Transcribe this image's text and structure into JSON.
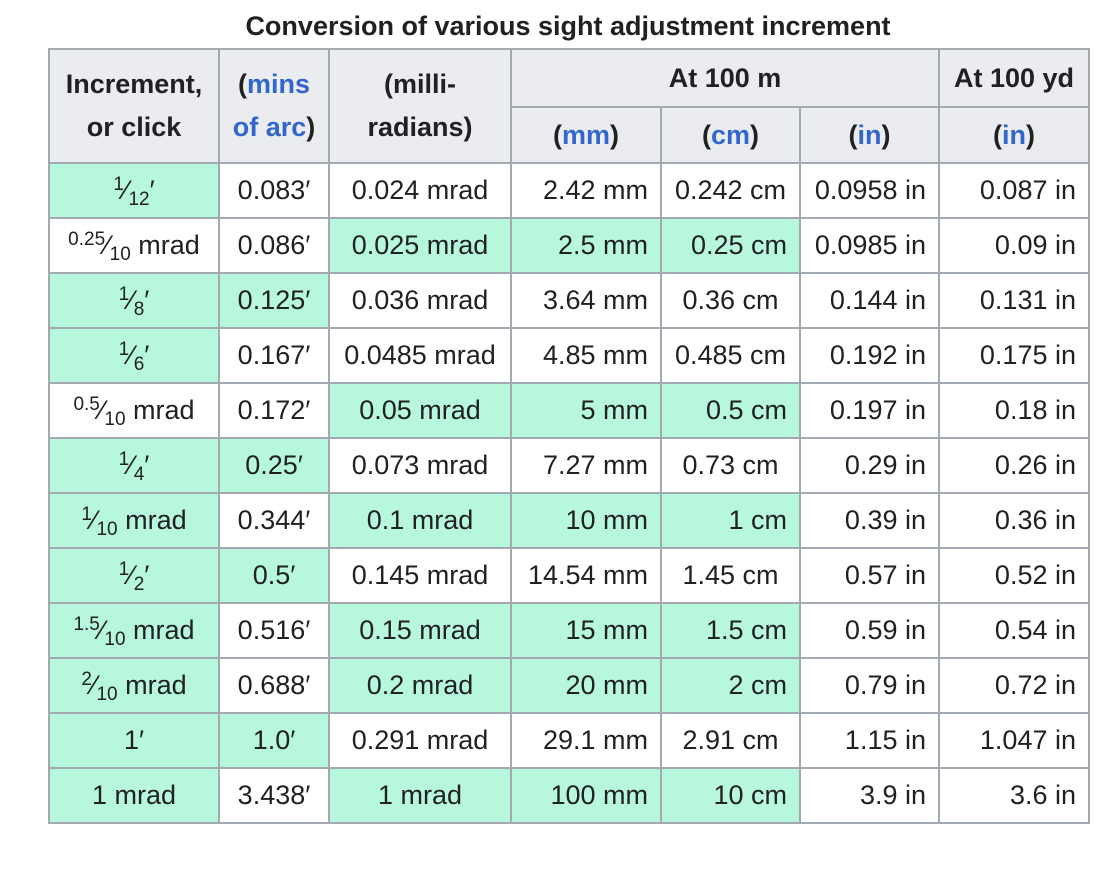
{
  "caption": "Conversion of various sight adjustment increment",
  "header": {
    "increment_line1": "Increment,",
    "increment_line2": "or click",
    "moa_open": "(",
    "moa_link1": "mins",
    "moa_link2": "of arc",
    "moa_close": ")",
    "mrad_line1": "(milli-",
    "mrad_line2": "radians)",
    "at100m": "At 100 m",
    "at100yd": "At 100 yd",
    "mm_unit": "mm",
    "cm_unit": "cm",
    "in_unit": "in",
    "in_unit_yd": "in"
  },
  "rows": [
    {
      "inc": {
        "num": "1",
        "den": "12",
        "suffix": "′"
      },
      "moa": "0.083′",
      "mrad": "0.024 mrad",
      "mm": "2.42 mm",
      "cm": "0.242 cm",
      "in": "0.0958 in",
      "yd": "0.087 in",
      "hl": {
        "inc": true,
        "moa": false,
        "mrad": false,
        "mm": false,
        "cm": false
      }
    },
    {
      "inc": {
        "num": "0.25",
        "den": "10",
        "suffix": " mrad"
      },
      "moa": "0.086′",
      "mrad": "0.025 mrad",
      "mm": "2.5 mm",
      "cm": "0.25 cm",
      "in": "0.0985 in",
      "yd": "0.09 in",
      "hl": {
        "inc": false,
        "moa": false,
        "mrad": true,
        "mm": true,
        "cm": true
      }
    },
    {
      "inc": {
        "num": "1",
        "den": "8",
        "suffix": "′"
      },
      "moa": "0.125′",
      "mrad": "0.036 mrad",
      "mm": "3.64 mm",
      "cm": "0.36 cm",
      "in": "0.144 in",
      "yd": "0.131 in",
      "hl": {
        "inc": true,
        "moa": true,
        "mrad": false,
        "mm": false,
        "cm": false
      }
    },
    {
      "inc": {
        "num": "1",
        "den": "6",
        "suffix": "′"
      },
      "moa": "0.167′",
      "mrad": "0.0485 mrad",
      "mm": "4.85 mm",
      "cm": "0.485 cm",
      "in": "0.192 in",
      "yd": "0.175 in",
      "hl": {
        "inc": true,
        "moa": false,
        "mrad": false,
        "mm": false,
        "cm": false
      }
    },
    {
      "inc": {
        "num": "0.5",
        "den": "10",
        "suffix": " mrad"
      },
      "moa": "0.172′",
      "mrad": "0.05 mrad",
      "mm": "5 mm",
      "cm": "0.5 cm",
      "in": "0.197 in",
      "yd": "0.18 in",
      "hl": {
        "inc": false,
        "moa": false,
        "mrad": true,
        "mm": true,
        "cm": true
      }
    },
    {
      "inc": {
        "num": "1",
        "den": "4",
        "suffix": "′"
      },
      "moa": "0.25′",
      "mrad": "0.073 mrad",
      "mm": "7.27 mm",
      "cm": "0.73 cm",
      "in": "0.29 in",
      "yd": "0.26 in",
      "hl": {
        "inc": true,
        "moa": true,
        "mrad": false,
        "mm": false,
        "cm": false
      }
    },
    {
      "inc": {
        "num": "1",
        "den": "10",
        "suffix": " mrad"
      },
      "moa": "0.344′",
      "mrad": "0.1 mrad",
      "mm": "10 mm",
      "cm": "1 cm",
      "in": "0.39 in",
      "yd": "0.36 in",
      "hl": {
        "inc": true,
        "moa": false,
        "mrad": true,
        "mm": true,
        "cm": true
      }
    },
    {
      "inc": {
        "num": "1",
        "den": "2",
        "suffix": "′"
      },
      "moa": "0.5′",
      "mrad": "0.145 mrad",
      "mm": "14.54 mm",
      "cm": "1.45 cm",
      "in": "0.57 in",
      "yd": "0.52 in",
      "hl": {
        "inc": true,
        "moa": true,
        "mrad": false,
        "mm": false,
        "cm": false
      }
    },
    {
      "inc": {
        "num": "1.5",
        "den": "10",
        "suffix": " mrad"
      },
      "moa": "0.516′",
      "mrad": "0.15 mrad",
      "mm": "15 mm",
      "cm": "1.5 cm",
      "in": "0.59 in",
      "yd": "0.54 in",
      "hl": {
        "inc": true,
        "moa": false,
        "mrad": true,
        "mm": true,
        "cm": true
      }
    },
    {
      "inc": {
        "num": "2",
        "den": "10",
        "suffix": " mrad"
      },
      "moa": "0.688′",
      "mrad": "0.2 mrad",
      "mm": "20 mm",
      "cm": "2 cm",
      "in": "0.79 in",
      "yd": "0.72 in",
      "hl": {
        "inc": true,
        "moa": false,
        "mrad": true,
        "mm": true,
        "cm": true
      }
    },
    {
      "inc": {
        "num": "",
        "den": "",
        "suffix": "1′"
      },
      "moa": "1.0′",
      "mrad": "0.291 mrad",
      "mm": "29.1 mm",
      "cm": "2.91 cm",
      "in": "1.15 in",
      "yd": "1.047 in",
      "hl": {
        "inc": true,
        "moa": true,
        "mrad": false,
        "mm": false,
        "cm": false
      }
    },
    {
      "inc": {
        "num": "",
        "den": "",
        "suffix": "1 mrad"
      },
      "moa": "3.438′",
      "mrad": "1 mrad",
      "mm": "100 mm",
      "cm": "10 cm",
      "in": "3.9 in",
      "yd": "3.6 in",
      "hl": {
        "inc": true,
        "moa": false,
        "mrad": true,
        "mm": true,
        "cm": true
      }
    }
  ],
  "colors": {
    "highlight": "#b7f7de",
    "header_bg": "#eaecf0",
    "border": "#a2a9b1",
    "link": "#3366cc"
  }
}
